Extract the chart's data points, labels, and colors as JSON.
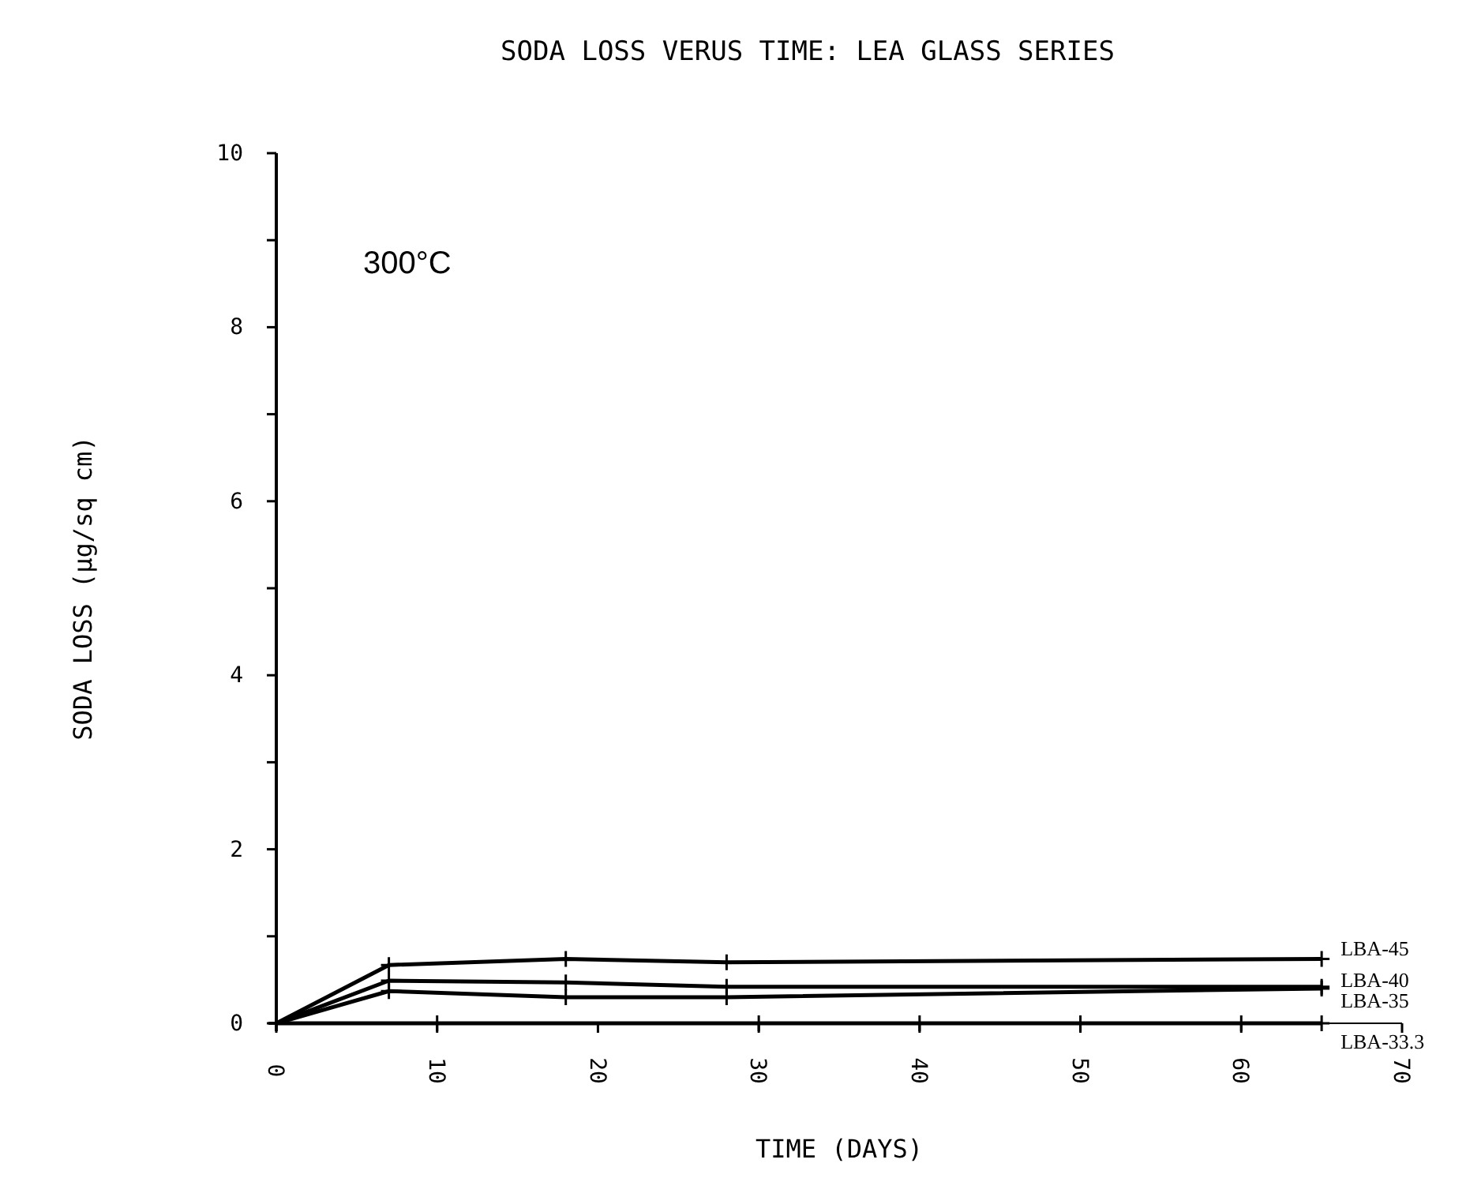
{
  "chart_data": {
    "type": "line",
    "title": "SODA LOSS VERUS TIME: LEA GLASS SERIES",
    "xlabel": "TIME (DAYS)",
    "ylabel": "SODA LOSS (µg/sq cm)",
    "annotations": [
      "300°C"
    ],
    "xlim": [
      0,
      70
    ],
    "xticks": [
      0,
      10,
      20,
      30,
      40,
      50,
      60,
      70
    ],
    "ylim": [
      0,
      10
    ],
    "yticks": [
      0,
      {
        "value": 1,
        "label": null
      },
      2,
      {
        "value": 3,
        "label": null
      },
      4,
      {
        "value": 5,
        "label": null
      },
      6,
      {
        "value": 7,
        "label": null
      },
      8,
      {
        "value": 9,
        "label": null
      },
      10
    ],
    "grid": false,
    "legend": "right",
    "marker": "cross",
    "line_style": "solid",
    "series": [
      {
        "name": "LBA-45",
        "color": "#000000",
        "x": [
          0,
          7,
          18,
          28,
          65
        ],
        "values": [
          0,
          0.67,
          0.74,
          0.7,
          0.74
        ]
      },
      {
        "name": "LBA-40",
        "color": "#000000",
        "x": [
          0,
          7,
          18,
          28,
          65
        ],
        "values": [
          0,
          0.49,
          0.47,
          0.42,
          0.42
        ]
      },
      {
        "name": "LBA-35",
        "color": "#000000",
        "x": [
          0,
          7,
          18,
          28,
          65
        ],
        "values": [
          0,
          0.37,
          0.3,
          0.3,
          0.4
        ]
      },
      {
        "name": "LBA-33.3",
        "color": "#000000",
        "x": [
          0,
          10,
          30,
          40,
          50,
          60,
          65
        ],
        "values": [
          0,
          0,
          0,
          0,
          0,
          0,
          0
        ]
      }
    ]
  }
}
